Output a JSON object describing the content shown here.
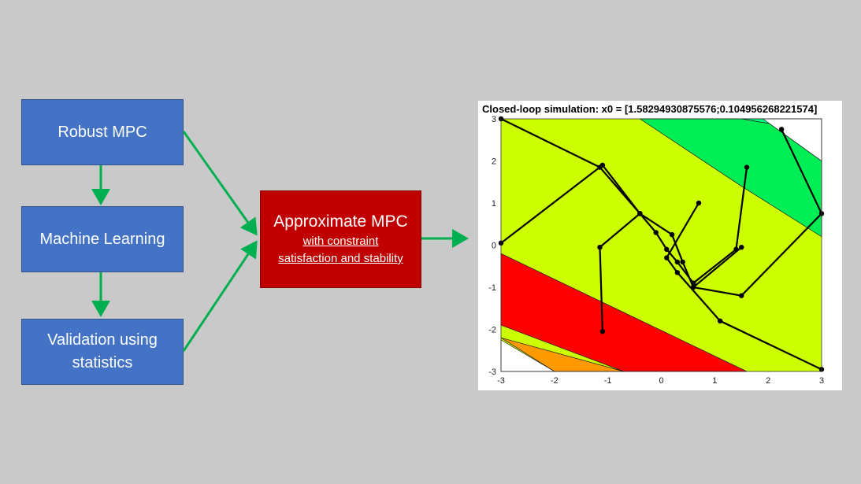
{
  "flow": {
    "robust_mpc": "Robust MPC",
    "machine_learning": "Machine Learning",
    "validation": "Validation using\nstatistics",
    "approx_title": "Approximate MPC",
    "approx_sub1": "with constraint",
    "approx_sub2": "satisfaction and stability"
  },
  "colors": {
    "box_blue": "#4472c4",
    "box_red": "#c00000",
    "arrow_green": "#00b050",
    "region_lime": "#ccff00",
    "region_green": "#00ee55",
    "region_bright_green": "#00ff80",
    "region_red": "#ff0000",
    "region_orange": "#ff9900"
  },
  "chart_data": {
    "type": "line",
    "title": "Closed-loop simulation: x0 = [1.58294930875576;0.104956268221574]",
    "xlim": [
      -3,
      3
    ],
    "ylim": [
      -3,
      3
    ],
    "xticks": [
      "-3",
      "-2",
      "-1",
      "0",
      "1",
      "2",
      "3"
    ],
    "yticks": [
      "3",
      "2",
      "1",
      "0",
      "-1",
      "-2",
      "-3"
    ],
    "grid": false,
    "regions": [
      {
        "color": "#ccff00",
        "vertices": [
          [
            -3,
            3
          ],
          [
            3,
            3
          ],
          [
            3,
            -3
          ],
          [
            -3,
            -3
          ]
        ]
      },
      {
        "color": "#00ee55",
        "vertices": [
          [
            -0.4,
            3
          ],
          [
            1.9,
            3
          ],
          [
            3,
            2.0
          ],
          [
            3,
            0.2
          ],
          [
            1.5,
            1.4
          ]
        ]
      },
      {
        "color": "#00ff80",
        "vertices": [
          [
            1.5,
            3
          ],
          [
            2.0,
            3
          ],
          [
            2.2,
            2.85
          ]
        ]
      },
      {
        "color": "#ff0000",
        "vertices": [
          [
            -3,
            -0.2
          ],
          [
            1.6,
            -3
          ],
          [
            -0.7,
            -3
          ],
          [
            -3,
            -1.9
          ]
        ]
      },
      {
        "color": "#ff9900",
        "vertices": [
          [
            -3,
            -2.2
          ],
          [
            -2.0,
            -3
          ],
          [
            -0.7,
            -3
          ]
        ]
      },
      {
        "color": "#ffffff",
        "vertices": [
          [
            -3,
            -2.25
          ],
          [
            -2.0,
            -3
          ],
          [
            -3,
            -3
          ]
        ]
      },
      {
        "color": "#ffffff",
        "vertices": [
          [
            1.9,
            3
          ],
          [
            3,
            3
          ],
          [
            3,
            2.0
          ]
        ]
      }
    ],
    "trajectories": [
      [
        [
          -3,
          3
        ],
        [
          -1.15,
          1.85
        ],
        [
          -0.4,
          0.75
        ],
        [
          0.2,
          0.25
        ],
        [
          0.4,
          -0.4
        ],
        [
          0.6,
          -1.0
        ],
        [
          1.5,
          -1.2
        ],
        [
          3,
          0.75
        ],
        [
          2.25,
          2.75
        ]
      ],
      [
        [
          -3,
          0.05
        ],
        [
          -1.1,
          1.9
        ],
        [
          -0.4,
          0.75
        ],
        [
          -0.1,
          0.3
        ],
        [
          0.1,
          -0.1
        ],
        [
          0.3,
          -0.4
        ],
        [
          0.6,
          -0.9
        ],
        [
          1.4,
          -0.1
        ],
        [
          1.6,
          1.85
        ]
      ],
      [
        [
          3,
          -2.95
        ],
        [
          1.1,
          -1.8
        ],
        [
          0.3,
          -0.65
        ],
        [
          0.1,
          -0.3
        ],
        [
          0.7,
          1.0
        ]
      ],
      [
        [
          -1.1,
          -2.05
        ],
        [
          -1.15,
          -0.05
        ],
        [
          -0.4,
          0.75
        ]
      ],
      [
        [
          0.6,
          -1.0
        ],
        [
          1.5,
          -0.05
        ]
      ]
    ]
  }
}
